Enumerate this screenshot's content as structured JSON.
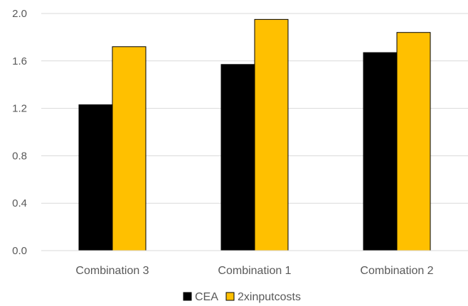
{
  "chart_data": {
    "type": "bar",
    "title": "",
    "xlabel": "",
    "ylabel": "",
    "categories": [
      "Combination 3",
      "Combination 1",
      "Combination 2"
    ],
    "series": [
      {
        "name": "CEA",
        "color": "#000000",
        "values": [
          1.23,
          1.57,
          1.67
        ]
      },
      {
        "name": "2xinputcosts",
        "color": "#FFC000",
        "values": [
          1.72,
          1.95,
          1.84
        ]
      }
    ],
    "ylim": [
      0,
      2.0
    ],
    "yticks": [
      "0.0",
      "0.4",
      "0.8",
      "1.2",
      "1.6",
      "2.0"
    ],
    "grid": true,
    "legend_position": "bottom"
  }
}
